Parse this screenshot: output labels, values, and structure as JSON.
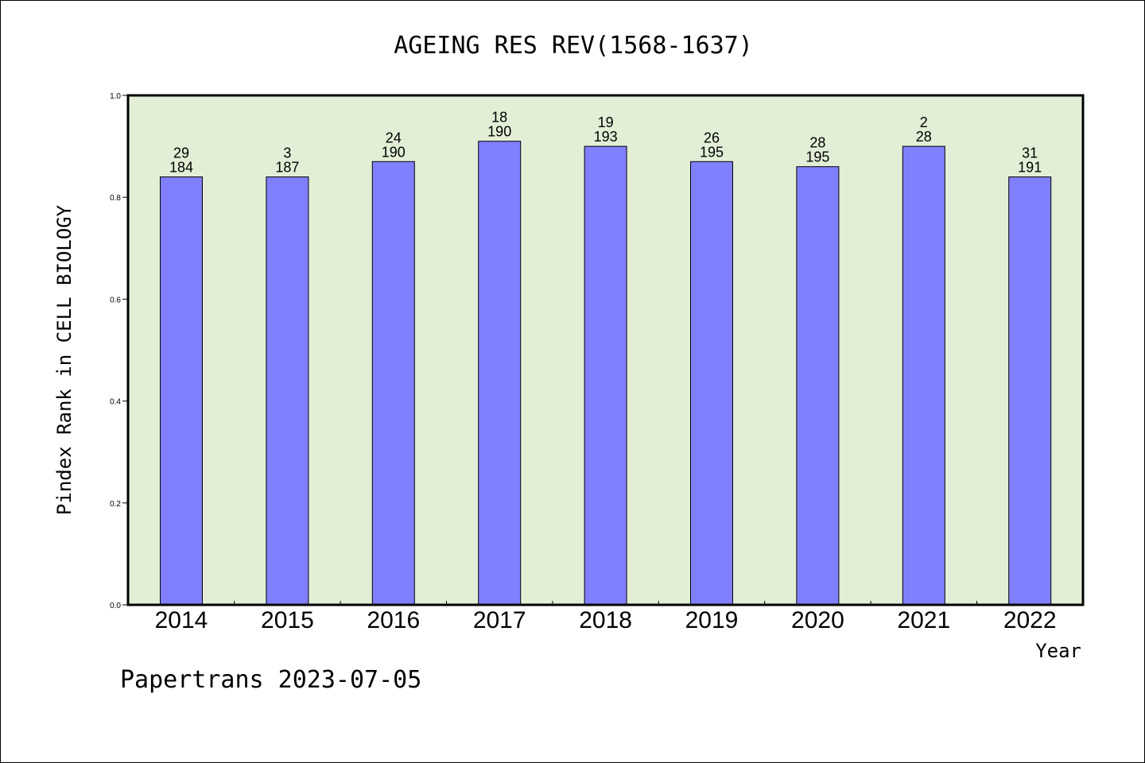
{
  "chart_data": {
    "type": "bar",
    "title": "AGEING RES REV(1568-1637)",
    "xlabel": "Year",
    "ylabel": "Pindex Rank in CELL BIOLOGY",
    "ylim": [
      0,
      1.0
    ],
    "yticks": [
      "0.0",
      "0.2",
      "0.4",
      "0.6",
      "0.8",
      "1.0"
    ],
    "categories": [
      "2014",
      "2015",
      "2016",
      "2017",
      "2018",
      "2019",
      "2020",
      "2021",
      "2022"
    ],
    "values": [
      0.84,
      0.84,
      0.87,
      0.91,
      0.9,
      0.87,
      0.86,
      0.9,
      0.84
    ],
    "labels_top": [
      "29",
      "3",
      "24",
      "18",
      "19",
      "26",
      "28",
      "2",
      "31"
    ],
    "labels_bottom": [
      "184",
      "187",
      "190",
      "190",
      "193",
      "195",
      "195",
      "28",
      "191"
    ],
    "colors": {
      "bar": "#8080ff",
      "plot_bg": "#e2efd6",
      "axis": "#000000"
    },
    "grid": false
  },
  "footer": "Papertrans 2023-07-05"
}
